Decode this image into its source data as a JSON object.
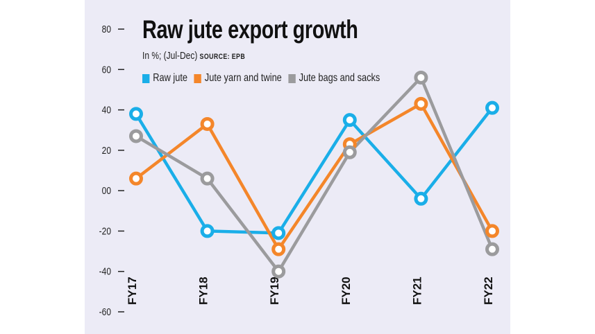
{
  "chart_data": {
    "type": "line",
    "title": "Raw jute export growth",
    "subtitle": "In %; (Jul-Dec)",
    "source": "SOURCE: EPB",
    "categories": [
      "FY17",
      "FY18",
      "FY19",
      "FY20",
      "FY21",
      "FY22"
    ],
    "ylim": [
      -60,
      80
    ],
    "yticks": [
      "80",
      "60",
      "40",
      "20",
      "00",
      "-20",
      "-40",
      "-60"
    ],
    "ytick_values": [
      80,
      60,
      40,
      20,
      0,
      -20,
      -40,
      -60
    ],
    "grid": false,
    "legend": "top-left",
    "series": [
      {
        "name": "Raw jute",
        "color": "#1aaee8",
        "values": [
          38,
          -20,
          -21,
          35,
          -4,
          41
        ]
      },
      {
        "name": "Jute yarn and twine",
        "color": "#f4862a",
        "values": [
          6,
          33,
          -29,
          23,
          43,
          -20
        ]
      },
      {
        "name": "Jute bags and sacks",
        "color": "#9b9b9d",
        "values": [
          27,
          6,
          -40,
          19,
          56,
          -29
        ]
      }
    ]
  }
}
